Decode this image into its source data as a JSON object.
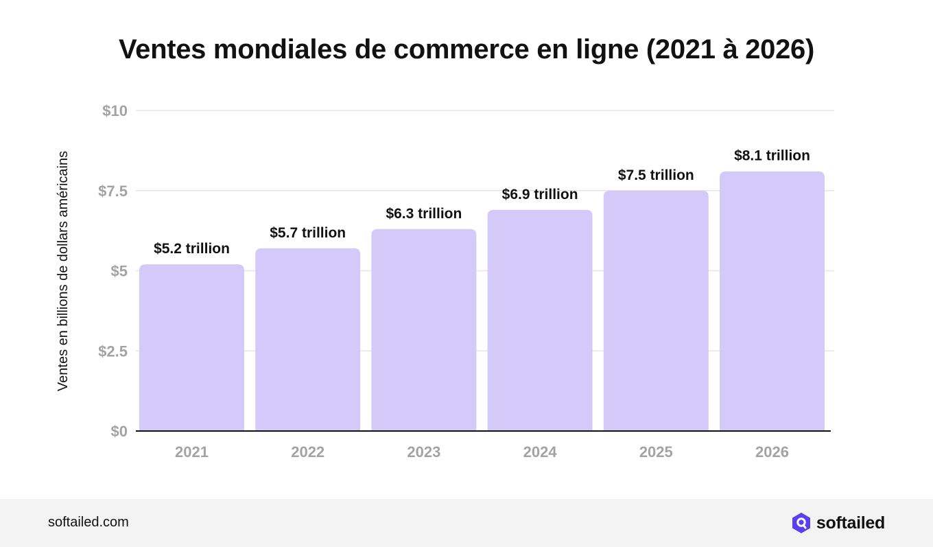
{
  "chart_data": {
    "type": "bar",
    "title": "Ventes mondiales de commerce en ligne (2021 à 2026)",
    "ylabel": "Ventes en billions de dollars américains",
    "xlabel": "",
    "categories": [
      "2021",
      "2022",
      "2023",
      "2024",
      "2025",
      "2026"
    ],
    "values": [
      5.2,
      5.7,
      6.3,
      6.9,
      7.5,
      8.1
    ],
    "data_labels": [
      "$5.2 trillion",
      "$5.7 trillion",
      "$6.3 trillion",
      "$6.9 trillion",
      "$7.5 trillion",
      "$8.1 trillion"
    ],
    "y_ticks": [
      0,
      2.5,
      5,
      7.5,
      10
    ],
    "y_tick_labels": [
      "$0",
      "$2.5",
      "$5",
      "$7.5",
      "$10"
    ],
    "ylim": [
      0,
      10
    ],
    "grid": true,
    "legend": "none"
  },
  "colors": {
    "bar": "#d3caf9",
    "grid": "#e6e6e6",
    "axis": "#111111",
    "tick_text": "#a3a3a3",
    "label_text": "#111111",
    "brand": "#5b3ef2"
  },
  "footer": {
    "url": "softailed.com",
    "brand_name": "softailed",
    "brand_icon": "softailed-logo-icon"
  }
}
